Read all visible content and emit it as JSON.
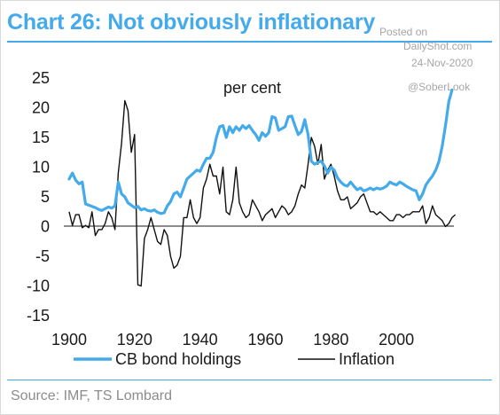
{
  "header": {
    "title": "Chart 26: Not obviously inflationary"
  },
  "watermark": {
    "posted_on": "Posted on",
    "site": "DailyShot.com",
    "date": "24-Nov-2020",
    "handle": "@SoberLook"
  },
  "footer": {
    "source": "Source: IMF, TS Lombard"
  },
  "chart_data": {
    "type": "line",
    "unit_label": "per cent",
    "xlim": [
      1900,
      2020
    ],
    "ylim": [
      -15,
      25
    ],
    "x_ticks": [
      1900,
      1920,
      1940,
      1960,
      1980,
      2000
    ],
    "y_ticks": [
      25,
      20,
      15,
      10,
      5,
      0,
      -5,
      -10,
      -15
    ],
    "grid": false,
    "legend_position": "bottom",
    "colors": {
      "cb": "#44aaea",
      "inflation": "#111111"
    },
    "series": [
      {
        "name": "CB bond holdings",
        "key": "cb",
        "points": [
          [
            1900,
            8.0
          ],
          [
            1901,
            9.0
          ],
          [
            1902,
            7.8
          ],
          [
            1903,
            7.2
          ],
          [
            1904,
            7.5
          ],
          [
            1905,
            3.8
          ],
          [
            1906,
            3.6
          ],
          [
            1907,
            3.4
          ],
          [
            1908,
            3.2
          ],
          [
            1909,
            2.9
          ],
          [
            1910,
            2.7
          ],
          [
            1911,
            3.0
          ],
          [
            1912,
            3.3
          ],
          [
            1913,
            3.1
          ],
          [
            1914,
            3.5
          ],
          [
            1915,
            7.5
          ],
          [
            1916,
            5.5
          ],
          [
            1917,
            5.0
          ],
          [
            1918,
            4.0
          ],
          [
            1919,
            3.6
          ],
          [
            1920,
            3.2
          ],
          [
            1921,
            3.4
          ],
          [
            1922,
            2.8
          ],
          [
            1923,
            3.0
          ],
          [
            1924,
            2.7
          ],
          [
            1925,
            2.6
          ],
          [
            1926,
            2.8
          ],
          [
            1927,
            2.4
          ],
          [
            1928,
            2.2
          ],
          [
            1929,
            2.3
          ],
          [
            1930,
            3.5
          ],
          [
            1931,
            4.2
          ],
          [
            1932,
            5.5
          ],
          [
            1933,
            5.8
          ],
          [
            1934,
            5.0
          ],
          [
            1935,
            6.5
          ],
          [
            1936,
            8.0
          ],
          [
            1937,
            8.5
          ],
          [
            1938,
            9.0
          ],
          [
            1939,
            9.5
          ],
          [
            1940,
            9.3
          ],
          [
            1941,
            10.5
          ],
          [
            1942,
            11.5
          ],
          [
            1943,
            11.5
          ],
          [
            1944,
            12.5
          ],
          [
            1945,
            15.0
          ],
          [
            1946,
            16.8
          ],
          [
            1947,
            17.0
          ],
          [
            1948,
            15.0
          ],
          [
            1949,
            16.8
          ],
          [
            1950,
            15.8
          ],
          [
            1951,
            16.8
          ],
          [
            1952,
            16.2
          ],
          [
            1953,
            17.0
          ],
          [
            1954,
            16.5
          ],
          [
            1955,
            17.0
          ],
          [
            1956,
            16.2
          ],
          [
            1957,
            15.5
          ],
          [
            1958,
            14.5
          ],
          [
            1959,
            15.8
          ],
          [
            1960,
            15.2
          ],
          [
            1961,
            15.8
          ],
          [
            1962,
            18.5
          ],
          [
            1963,
            18.3
          ],
          [
            1964,
            16.2
          ],
          [
            1965,
            16.5
          ],
          [
            1966,
            16.8
          ],
          [
            1967,
            18.5
          ],
          [
            1968,
            18.6
          ],
          [
            1969,
            17.0
          ],
          [
            1970,
            15.5
          ],
          [
            1971,
            16.0
          ],
          [
            1972,
            18.0
          ],
          [
            1973,
            15.5
          ],
          [
            1974,
            11.0
          ],
          [
            1975,
            10.5
          ],
          [
            1976,
            10.8
          ],
          [
            1977,
            11.0
          ],
          [
            1978,
            10.2
          ],
          [
            1979,
            9.0
          ],
          [
            1980,
            10.0
          ],
          [
            1981,
            9.5
          ],
          [
            1982,
            8.2
          ],
          [
            1983,
            7.5
          ],
          [
            1984,
            7.0
          ],
          [
            1985,
            6.8
          ],
          [
            1986,
            7.5
          ],
          [
            1987,
            6.8
          ],
          [
            1988,
            6.2
          ],
          [
            1989,
            6.5
          ],
          [
            1990,
            6.0
          ],
          [
            1991,
            6.2
          ],
          [
            1992,
            6.5
          ],
          [
            1993,
            6.2
          ],
          [
            1994,
            6.5
          ],
          [
            1995,
            6.3
          ],
          [
            1996,
            6.5
          ],
          [
            1997,
            6.8
          ],
          [
            1998,
            7.5
          ],
          [
            1999,
            7.2
          ],
          [
            2000,
            7.0
          ],
          [
            2001,
            7.5
          ],
          [
            2002,
            7.2
          ],
          [
            2003,
            6.8
          ],
          [
            2004,
            6.5
          ],
          [
            2005,
            6.2
          ],
          [
            2006,
            6.0
          ],
          [
            2007,
            4.5
          ],
          [
            2008,
            5.5
          ],
          [
            2009,
            7.0
          ],
          [
            2010,
            7.8
          ],
          [
            2011,
            8.5
          ],
          [
            2012,
            9.5
          ],
          [
            2013,
            11.0
          ],
          [
            2014,
            13.5
          ],
          [
            2015,
            17.0
          ],
          [
            2016,
            21.0
          ],
          [
            2017,
            23.0
          ]
        ]
      },
      {
        "name": "Inflation",
        "key": "inflation",
        "points": [
          [
            1900,
            2.5
          ],
          [
            1901,
            0.2
          ],
          [
            1902,
            2.0
          ],
          [
            1903,
            2.0
          ],
          [
            1904,
            -0.2
          ],
          [
            1905,
            0.2
          ],
          [
            1906,
            -0.2
          ],
          [
            1907,
            2.5
          ],
          [
            1908,
            -1.5
          ],
          [
            1909,
            -0.5
          ],
          [
            1910,
            -0.5
          ],
          [
            1911,
            0.5
          ],
          [
            1912,
            2.5
          ],
          [
            1913,
            1.5
          ],
          [
            1914,
            -0.5
          ],
          [
            1915,
            9.0
          ],
          [
            1916,
            14.0
          ],
          [
            1917,
            21.2
          ],
          [
            1918,
            19.5
          ],
          [
            1919,
            12.5
          ],
          [
            1920,
            15.5
          ],
          [
            1921,
            -9.8
          ],
          [
            1922,
            -10.0
          ],
          [
            1923,
            -2.0
          ],
          [
            1924,
            -0.5
          ],
          [
            1925,
            1.5
          ],
          [
            1926,
            -0.5
          ],
          [
            1927,
            -2.5
          ],
          [
            1928,
            -3.0
          ],
          [
            1929,
            -0.5
          ],
          [
            1930,
            -1.5
          ],
          [
            1931,
            -5.0
          ],
          [
            1932,
            -7.0
          ],
          [
            1933,
            -6.5
          ],
          [
            1934,
            -5.0
          ],
          [
            1935,
            1.5
          ],
          [
            1936,
            1.5
          ],
          [
            1937,
            4.5
          ],
          [
            1938,
            1.5
          ],
          [
            1939,
            0.5
          ],
          [
            1940,
            1.5
          ],
          [
            1941,
            6.5
          ],
          [
            1942,
            8.0
          ],
          [
            1943,
            10.5
          ],
          [
            1944,
            8.5
          ],
          [
            1945,
            8.5
          ],
          [
            1946,
            5.5
          ],
          [
            1947,
            10.0
          ],
          [
            1948,
            2.5
          ],
          [
            1949,
            2.0
          ],
          [
            1950,
            4.5
          ],
          [
            1951,
            10.0
          ],
          [
            1952,
            4.0
          ],
          [
            1953,
            2.5
          ],
          [
            1954,
            1.5
          ],
          [
            1955,
            2.0
          ],
          [
            1956,
            4.5
          ],
          [
            1957,
            3.5
          ],
          [
            1958,
            2.5
          ],
          [
            1959,
            1.0
          ],
          [
            1960,
            2.0
          ],
          [
            1961,
            2.5
          ],
          [
            1962,
            3.0
          ],
          [
            1963,
            1.5
          ],
          [
            1964,
            2.5
          ],
          [
            1965,
            3.5
          ],
          [
            1966,
            3.0
          ],
          [
            1967,
            2.0
          ],
          [
            1968,
            2.5
          ],
          [
            1969,
            3.5
          ],
          [
            1970,
            5.5
          ],
          [
            1971,
            7.0
          ],
          [
            1972,
            6.5
          ],
          [
            1973,
            10.5
          ],
          [
            1974,
            15.0
          ],
          [
            1975,
            13.5
          ],
          [
            1976,
            10.5
          ],
          [
            1977,
            13.8
          ],
          [
            1978,
            8.0
          ],
          [
            1979,
            9.5
          ],
          [
            1980,
            10.5
          ],
          [
            1981,
            8.5
          ],
          [
            1982,
            6.0
          ],
          [
            1983,
            4.5
          ],
          [
            1984,
            4.5
          ],
          [
            1985,
            5.0
          ],
          [
            1986,
            3.0
          ],
          [
            1987,
            3.5
          ],
          [
            1988,
            4.0
          ],
          [
            1989,
            5.0
          ],
          [
            1990,
            5.5
          ],
          [
            1991,
            4.0
          ],
          [
            1992,
            2.5
          ],
          [
            1993,
            2.5
          ],
          [
            1994,
            2.0
          ],
          [
            1995,
            2.5
          ],
          [
            1996,
            2.0
          ],
          [
            1997,
            1.5
          ],
          [
            1998,
            1.0
          ],
          [
            1999,
            1.0
          ],
          [
            2000,
            2.0
          ],
          [
            2001,
            2.0
          ],
          [
            2002,
            1.5
          ],
          [
            2003,
            2.0
          ],
          [
            2004,
            2.0
          ],
          [
            2005,
            2.5
          ],
          [
            2006,
            2.5
          ],
          [
            2007,
            2.5
          ],
          [
            2008,
            3.5
          ],
          [
            2009,
            0.5
          ],
          [
            2010,
            1.5
          ],
          [
            2011,
            3.5
          ],
          [
            2012,
            2.0
          ],
          [
            2013,
            1.5
          ],
          [
            2014,
            1.0
          ],
          [
            2015,
            0.0
          ],
          [
            2016,
            0.5
          ],
          [
            2017,
            1.5
          ],
          [
            2018,
            2.0
          ]
        ]
      }
    ]
  }
}
